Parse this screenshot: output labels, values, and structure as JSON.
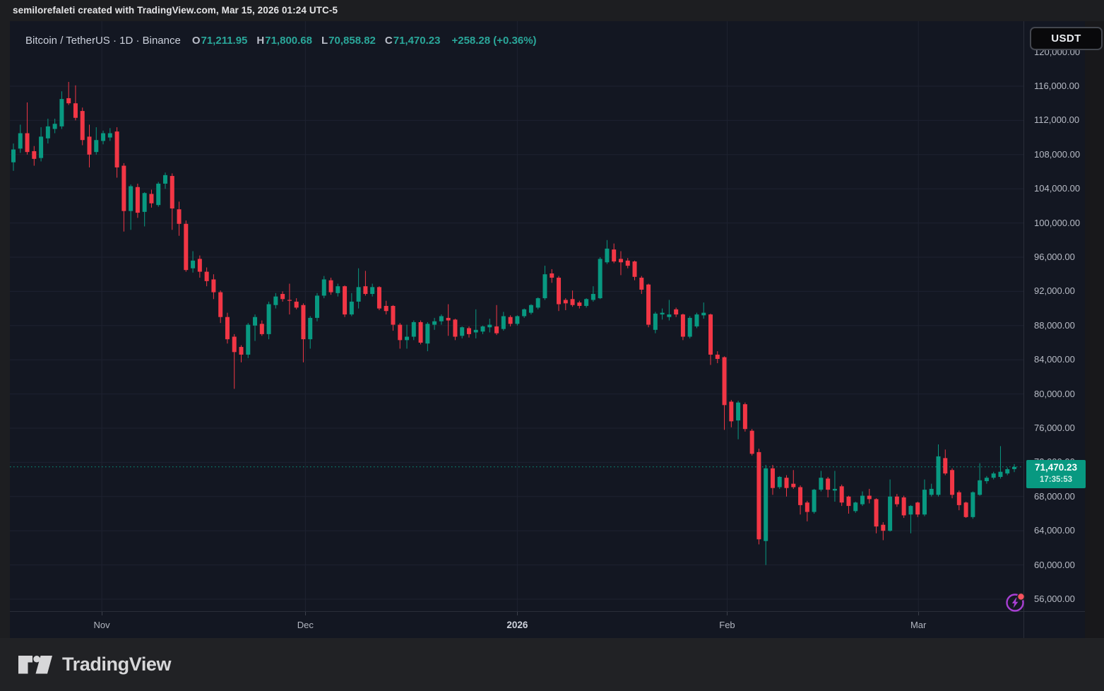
{
  "attribution": "semilorefaleti created with TradingView.com, Mar 15, 2026 01:24 UTC-5",
  "header": {
    "symbol_title": "Bitcoin / TetherUS · 1D · Binance",
    "ohlc": [
      {
        "label": "O",
        "value": "71,211.95"
      },
      {
        "label": "H",
        "value": "71,800.68"
      },
      {
        "label": "L",
        "value": "70,858.82"
      },
      {
        "label": "C",
        "value": "71,470.23"
      }
    ],
    "change": "+258.28 (+0.36%)",
    "currency_button": "USDT"
  },
  "price_scale": {
    "labels": [
      {
        "text": "120,000.00",
        "value": 120000
      },
      {
        "text": "116,000.00",
        "value": 116000
      },
      {
        "text": "112,000.00",
        "value": 112000
      },
      {
        "text": "108,000.00",
        "value": 108000
      },
      {
        "text": "104,000.00",
        "value": 104000
      },
      {
        "text": "100,000.00",
        "value": 100000
      },
      {
        "text": "96,000.00",
        "value": 96000
      },
      {
        "text": "92,000.00",
        "value": 92000
      },
      {
        "text": "88,000.00",
        "value": 88000
      },
      {
        "text": "84,000.00",
        "value": 84000
      },
      {
        "text": "80,000.00",
        "value": 80000
      },
      {
        "text": "76,000.00",
        "value": 76000
      },
      {
        "text": "72,000.00",
        "value": 72000
      },
      {
        "text": "68,000.00",
        "value": 68000
      },
      {
        "text": "64,000.00",
        "value": 64000
      },
      {
        "text": "60,000.00",
        "value": 60000
      },
      {
        "text": "56,000.00",
        "value": 56000
      }
    ]
  },
  "current_price": {
    "text": "71,470.23",
    "countdown": "17:35:53",
    "value": 71470.23
  },
  "time_axis": {
    "ticks": [
      {
        "label": "Nov",
        "index": 12.8,
        "bold": false
      },
      {
        "label": "Dec",
        "index": 42.3,
        "bold": false
      },
      {
        "label": "2026",
        "index": 73.0,
        "bold": true
      },
      {
        "label": "Feb",
        "index": 103.4,
        "bold": false
      },
      {
        "label": "Mar",
        "index": 131.1,
        "bold": false
      }
    ]
  },
  "footer": {
    "logo_text": "TradingView"
  },
  "colors": {
    "up": "#089981",
    "down": "#f23645",
    "badge_bg": "#089981",
    "header_value": "#2aa79a",
    "grid": "#1e2230",
    "axis_line": "#2a2e39",
    "chart_bg": "#131722",
    "quick_search_purple": "#a83fd3",
    "alert_dot_red": "#f7525f"
  },
  "chart_data": {
    "type": "candlestick",
    "title": "Bitcoin / TetherUS",
    "exchange": "Binance",
    "interval": "1D",
    "quote_currency": "USDT",
    "price_axis": {
      "min": 56000,
      "max": 120000,
      "step": 4000
    },
    "x_axis_months": [
      "Nov",
      "Dec",
      "2026",
      "Feb",
      "Mar"
    ],
    "candles": [
      [
        107100,
        109300,
        106100,
        108600
      ],
      [
        108700,
        111500,
        108200,
        110500
      ],
      [
        110500,
        114100,
        108000,
        108300
      ],
      [
        108400,
        109000,
        106700,
        107500
      ],
      [
        107600,
        111200,
        107200,
        110100
      ],
      [
        109900,
        112200,
        109300,
        111300
      ],
      [
        111000,
        112200,
        110500,
        111600
      ],
      [
        111300,
        115400,
        111000,
        114500
      ],
      [
        114600,
        116500,
        113800,
        114000
      ],
      [
        114000,
        116100,
        112000,
        112300
      ],
      [
        113100,
        113500,
        109100,
        109700
      ],
      [
        110100,
        111500,
        106500,
        108000
      ],
      [
        108300,
        111200,
        108000,
        109700
      ],
      [
        109600,
        110800,
        109200,
        110500
      ],
      [
        110000,
        111100,
        109600,
        110500
      ],
      [
        110700,
        111200,
        105300,
        106500
      ],
      [
        106700,
        107000,
        99000,
        101400
      ],
      [
        101400,
        104500,
        99200,
        104300
      ],
      [
        104200,
        104600,
        100600,
        101200
      ],
      [
        101300,
        103600,
        99600,
        103500
      ],
      [
        103400,
        103900,
        101800,
        102300
      ],
      [
        102100,
        104800,
        101900,
        104600
      ],
      [
        104600,
        105900,
        104000,
        105600
      ],
      [
        105500,
        105800,
        99200,
        101700
      ],
      [
        101600,
        102500,
        98500,
        99900
      ],
      [
        99900,
        100300,
        94300,
        94500
      ],
      [
        94700,
        96700,
        94200,
        95600
      ],
      [
        95800,
        96200,
        93600,
        94300
      ],
      [
        94300,
        94800,
        92600,
        93200
      ],
      [
        93400,
        94000,
        91100,
        91900
      ],
      [
        91900,
        92100,
        88300,
        89000
      ],
      [
        89000,
        89500,
        85900,
        86400
      ],
      [
        86700,
        87000,
        80600,
        84900
      ],
      [
        85500,
        85700,
        83700,
        84600
      ],
      [
        84600,
        88300,
        84200,
        88100
      ],
      [
        88000,
        89300,
        86200,
        89000
      ],
      [
        88200,
        88600,
        86800,
        87000
      ],
      [
        87000,
        90800,
        86400,
        90500
      ],
      [
        90400,
        91800,
        90000,
        91400
      ],
      [
        91700,
        92000,
        90800,
        91100
      ],
      [
        91000,
        92900,
        89300,
        90900
      ],
      [
        90800,
        91200,
        89900,
        90100
      ],
      [
        90400,
        90600,
        83700,
        86400
      ],
      [
        86400,
        89100,
        85300,
        88900
      ],
      [
        88900,
        91800,
        88500,
        91500
      ],
      [
        91500,
        93800,
        91200,
        93400
      ],
      [
        93300,
        93600,
        91600,
        91900
      ],
      [
        91800,
        92900,
        91400,
        92600
      ],
      [
        92600,
        92700,
        89000,
        89300
      ],
      [
        89300,
        91800,
        89100,
        90800
      ],
      [
        90800,
        94700,
        90000,
        92500
      ],
      [
        92600,
        94400,
        91500,
        91700
      ],
      [
        91700,
        92900,
        91400,
        92500
      ],
      [
        92500,
        92600,
        89800,
        90000
      ],
      [
        90300,
        90900,
        89300,
        89700
      ],
      [
        90300,
        90400,
        87400,
        88100
      ],
      [
        88100,
        88300,
        85300,
        86300
      ],
      [
        86300,
        88100,
        85300,
        86700
      ],
      [
        86700,
        88600,
        86300,
        88400
      ],
      [
        88400,
        88600,
        85800,
        86000
      ],
      [
        85900,
        88400,
        85000,
        88200
      ],
      [
        88100,
        88900,
        87500,
        88500
      ],
      [
        88500,
        89300,
        88100,
        89100
      ],
      [
        88900,
        90500,
        86800,
        88600
      ],
      [
        88700,
        88800,
        86300,
        86700
      ],
      [
        86800,
        87900,
        86500,
        87800
      ],
      [
        87700,
        87900,
        86600,
        87000
      ],
      [
        87200,
        89900,
        86500,
        87500
      ],
      [
        87300,
        88000,
        87000,
        87900
      ],
      [
        87800,
        88800,
        87200,
        88100
      ],
      [
        87900,
        90400,
        86900,
        87100
      ],
      [
        87600,
        89600,
        87400,
        89100
      ],
      [
        89000,
        89200,
        87900,
        88200
      ],
      [
        88200,
        89200,
        88000,
        89100
      ],
      [
        89100,
        90000,
        88900,
        89900
      ],
      [
        89500,
        90500,
        89300,
        90400
      ],
      [
        90100,
        91300,
        89900,
        91200
      ],
      [
        91200,
        95000,
        91000,
        94000
      ],
      [
        94100,
        94600,
        93000,
        93600
      ],
      [
        93600,
        93800,
        89700,
        90500
      ],
      [
        91000,
        91200,
        89800,
        90600
      ],
      [
        91100,
        92100,
        90200,
        90400
      ],
      [
        90700,
        90900,
        90000,
        90300
      ],
      [
        90300,
        91200,
        90100,
        91100
      ],
      [
        91000,
        92600,
        90800,
        91700
      ],
      [
        91200,
        96000,
        91100,
        95800
      ],
      [
        95400,
        98000,
        95200,
        97000
      ],
      [
        96900,
        97600,
        95300,
        95500
      ],
      [
        95800,
        96700,
        93900,
        95400
      ],
      [
        95600,
        95900,
        94700,
        95000
      ],
      [
        95500,
        95600,
        93300,
        93700
      ],
      [
        93600,
        93800,
        91700,
        92200
      ],
      [
        92800,
        92900,
        87800,
        88100
      ],
      [
        87500,
        89600,
        87100,
        89400
      ],
      [
        89300,
        90000,
        88700,
        89500
      ],
      [
        89000,
        91000,
        88600,
        89300
      ],
      [
        89900,
        90100,
        89000,
        89300
      ],
      [
        89300,
        89400,
        86300,
        86700
      ],
      [
        86700,
        89100,
        86500,
        88900
      ],
      [
        87900,
        89500,
        87700,
        89300
      ],
      [
        89200,
        90700,
        88800,
        89500
      ],
      [
        89300,
        89400,
        83400,
        84600
      ],
      [
        84600,
        85000,
        83600,
        84100
      ],
      [
        84300,
        84400,
        75800,
        78700
      ],
      [
        79100,
        79300,
        76100,
        76800
      ],
      [
        76900,
        79200,
        74700,
        79000
      ],
      [
        78800,
        79000,
        75600,
        75900
      ],
      [
        75700,
        75900,
        72800,
        73000
      ],
      [
        73200,
        73600,
        62400,
        63000
      ],
      [
        62800,
        71700,
        60000,
        71300
      ],
      [
        71300,
        71700,
        68200,
        69000
      ],
      [
        69100,
        70400,
        68900,
        70300
      ],
      [
        70200,
        70500,
        68000,
        69000
      ],
      [
        69500,
        71100,
        68900,
        69100
      ],
      [
        69100,
        69300,
        65900,
        67000
      ],
      [
        67300,
        67500,
        65100,
        66200
      ],
      [
        66200,
        68900,
        66000,
        68800
      ],
      [
        68800,
        71000,
        68600,
        70200
      ],
      [
        70100,
        70300,
        67900,
        68800
      ],
      [
        68700,
        71000,
        67400,
        68900
      ],
      [
        69200,
        69400,
        66900,
        67300
      ],
      [
        68000,
        68100,
        66000,
        66900
      ],
      [
        66300,
        67400,
        66100,
        67300
      ],
      [
        67100,
        68600,
        66900,
        68100
      ],
      [
        68100,
        68900,
        67200,
        67700
      ],
      [
        67700,
        67800,
        63700,
        64500
      ],
      [
        64700,
        65000,
        62900,
        64000
      ],
      [
        64000,
        70000,
        63900,
        68000
      ],
      [
        68000,
        68300,
        66800,
        67100
      ],
      [
        67900,
        68100,
        65500,
        65800
      ],
      [
        65900,
        67000,
        63700,
        66900
      ],
      [
        67300,
        67400,
        65600,
        65900
      ],
      [
        65900,
        70000,
        65700,
        68800
      ],
      [
        68200,
        69500,
        68000,
        68900
      ],
      [
        68200,
        74100,
        68000,
        72700
      ],
      [
        72500,
        73500,
        70500,
        70700
      ],
      [
        71100,
        71300,
        67800,
        68200
      ],
      [
        68500,
        68700,
        66400,
        67000
      ],
      [
        67300,
        67400,
        65500,
        65600
      ],
      [
        65600,
        68600,
        65400,
        68500
      ],
      [
        68200,
        71900,
        68100,
        69900
      ],
      [
        69800,
        70400,
        69500,
        70200
      ],
      [
        70200,
        70900,
        70000,
        70700
      ],
      [
        70300,
        73900,
        70100,
        70900
      ],
      [
        70700,
        71400,
        70500,
        71200
      ],
      [
        71211.95,
        71800.68,
        70858.82,
        71470.23
      ]
    ]
  }
}
